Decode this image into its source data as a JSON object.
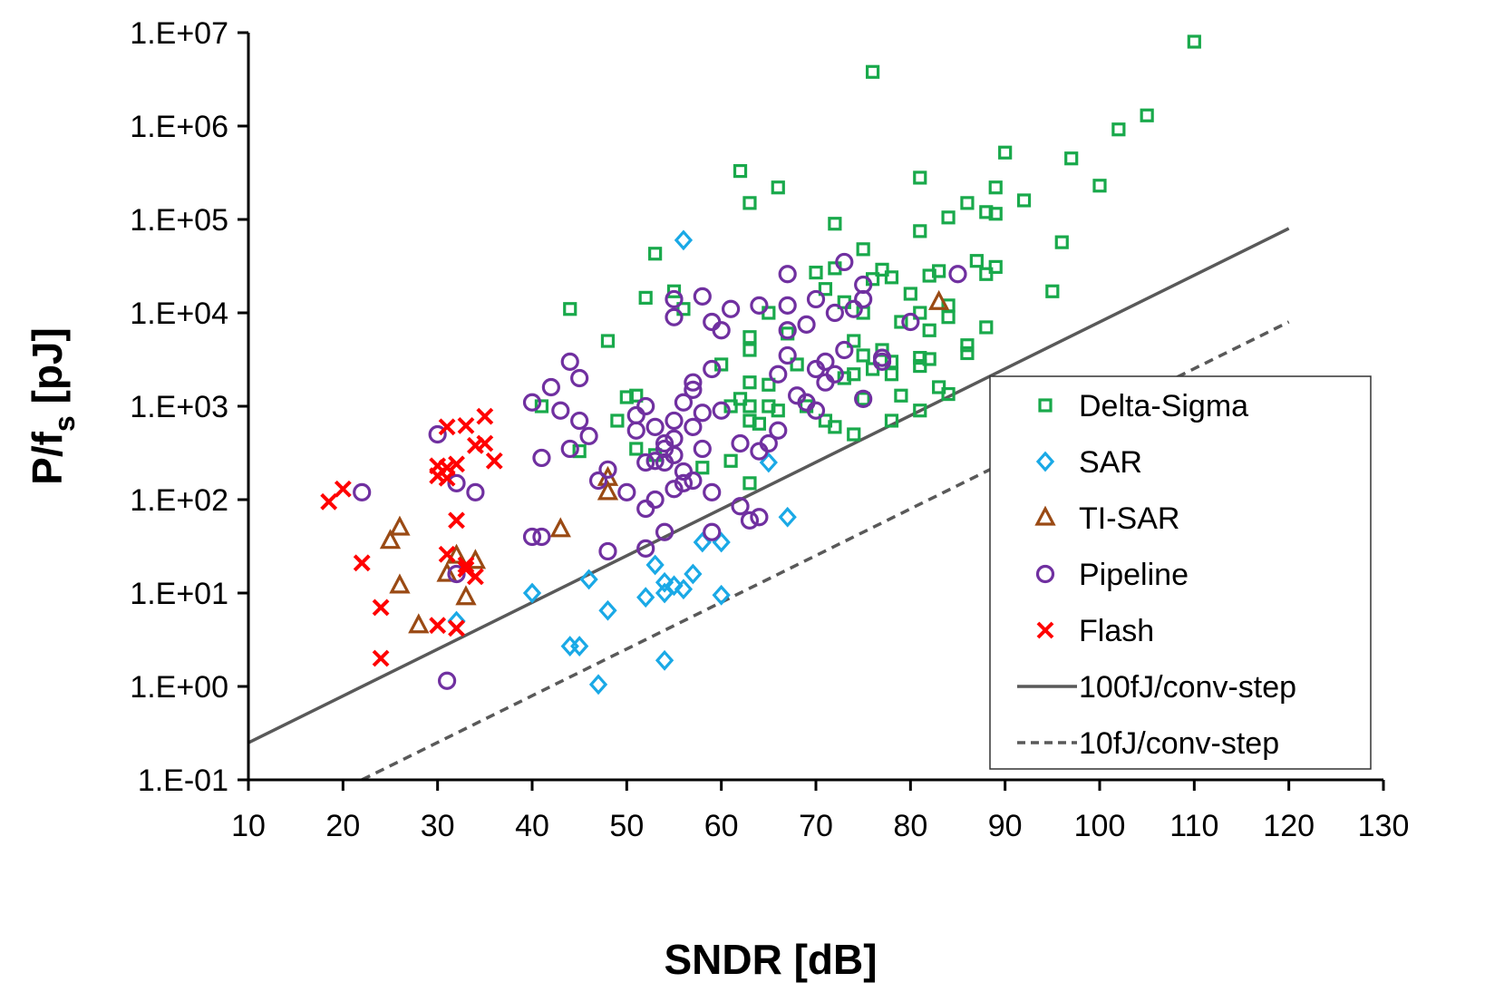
{
  "chart_data": {
    "type": "scatter",
    "title": "",
    "xlabel": "SNDR [dB]",
    "ylabel_main": "P/f",
    "ylabel_sub": "s",
    "ylabel_tail": " [pJ]",
    "xlim": [
      10,
      130
    ],
    "ylim": [
      0.1,
      10000000
    ],
    "yscale": "log",
    "grid": false,
    "legend_position": "bottom-right",
    "x_ticks": [
      "10",
      "20",
      "30",
      "40",
      "50",
      "60",
      "70",
      "80",
      "90",
      "100",
      "110",
      "120",
      "130"
    ],
    "y_ticks": [
      "1.E-01",
      "1.E+00",
      "1.E+01",
      "1.E+02",
      "1.E+03",
      "1.E+04",
      "1.E+05",
      "1.E+06",
      "1.E+07"
    ],
    "series": [
      {
        "name": "Delta-Sigma",
        "marker": "square",
        "color": "#19a94b",
        "points": [
          [
            110,
            8000000
          ],
          [
            76,
            3800000
          ],
          [
            105,
            1300000
          ],
          [
            102,
            920000
          ],
          [
            90,
            520000
          ],
          [
            97,
            450000
          ],
          [
            62,
            330000
          ],
          [
            81,
            280000
          ],
          [
            66,
            220000
          ],
          [
            89,
            220000
          ],
          [
            100,
            230000
          ],
          [
            92,
            160000
          ],
          [
            63,
            150000
          ],
          [
            86,
            150000
          ],
          [
            88,
            120000
          ],
          [
            89,
            115000
          ],
          [
            84,
            105000
          ],
          [
            72,
            90000
          ],
          [
            81,
            75000
          ],
          [
            96,
            57000
          ],
          [
            75,
            48000
          ],
          [
            53,
            43000
          ],
          [
            87,
            36000
          ],
          [
            89,
            31000
          ],
          [
            77,
            29000
          ],
          [
            70,
            27000
          ],
          [
            72,
            30000
          ],
          [
            83,
            28000
          ],
          [
            88,
            26000
          ],
          [
            78,
            24000
          ],
          [
            76,
            23000
          ],
          [
            82,
            25000
          ],
          [
            55,
            17000
          ],
          [
            71,
            18000
          ],
          [
            80,
            16000
          ],
          [
            95,
            17000
          ],
          [
            52,
            14500
          ],
          [
            73,
            13000
          ],
          [
            84,
            12000
          ],
          [
            44,
            11000
          ],
          [
            56,
            11000
          ],
          [
            75,
            10000
          ],
          [
            81,
            10000
          ],
          [
            65,
            10000
          ],
          [
            84,
            9000
          ],
          [
            79,
            8000
          ],
          [
            88,
            7000
          ],
          [
            82,
            6500
          ],
          [
            63,
            5500
          ],
          [
            67,
            6000
          ],
          [
            48,
            5000
          ],
          [
            74,
            5000
          ],
          [
            86,
            4500
          ],
          [
            63,
            4000
          ],
          [
            77,
            4000
          ],
          [
            86,
            3700
          ],
          [
            75,
            3500
          ],
          [
            81,
            3300
          ],
          [
            82,
            3200
          ],
          [
            78,
            3000
          ],
          [
            60,
            2800
          ],
          [
            68,
            2800
          ],
          [
            76,
            2500
          ],
          [
            78,
            2200
          ],
          [
            81,
            2700
          ],
          [
            74,
            2200
          ],
          [
            73,
            2000
          ],
          [
            63,
            1800
          ],
          [
            65,
            1700
          ],
          [
            83,
            1600
          ],
          [
            84,
            1350
          ],
          [
            79,
            1300
          ],
          [
            75,
            1200
          ],
          [
            62,
            1200
          ],
          [
            50,
            1250
          ],
          [
            51,
            1300
          ],
          [
            41,
            1000
          ],
          [
            61,
            1000
          ],
          [
            63,
            1000
          ],
          [
            65,
            1000
          ],
          [
            66,
            900
          ],
          [
            69,
            1000
          ],
          [
            81,
            900
          ],
          [
            63,
            700
          ],
          [
            64,
            650
          ],
          [
            71,
            700
          ],
          [
            72,
            600
          ],
          [
            74,
            500
          ],
          [
            78,
            700
          ],
          [
            49,
            700
          ],
          [
            51,
            350
          ],
          [
            45,
            330
          ],
          [
            58,
            220
          ],
          [
            61,
            260
          ],
          [
            63,
            150
          ],
          [
            53,
            300
          ]
        ]
      },
      {
        "name": "SAR",
        "marker": "diamond",
        "color": "#1aa9e6",
        "points": [
          [
            56,
            60000
          ],
          [
            65,
            250
          ],
          [
            67,
            65
          ],
          [
            58,
            35
          ],
          [
            60,
            35
          ],
          [
            46,
            14
          ],
          [
            40,
            10
          ],
          [
            53,
            20
          ],
          [
            54,
            13
          ],
          [
            55,
            12
          ],
          [
            54,
            10
          ],
          [
            56,
            11
          ],
          [
            57,
            16
          ],
          [
            52,
            9
          ],
          [
            60,
            9.5
          ],
          [
            48,
            6.5
          ],
          [
            32,
            5
          ],
          [
            44,
            2.7
          ],
          [
            45,
            2.7
          ],
          [
            54,
            1.9
          ],
          [
            47,
            1.05
          ]
        ]
      },
      {
        "name": "TI-SAR",
        "marker": "triangle",
        "color": "#9a4a14",
        "points": [
          [
            83,
            13000
          ],
          [
            48,
            120
          ],
          [
            48,
            170
          ],
          [
            26,
            50
          ],
          [
            25,
            36
          ],
          [
            43,
            48
          ],
          [
            26,
            12
          ],
          [
            31,
            16
          ],
          [
            32,
            25
          ],
          [
            34,
            22
          ],
          [
            33,
            9
          ],
          [
            28,
            4.5
          ]
        ]
      },
      {
        "name": "Pipeline",
        "marker": "circle",
        "color": "#7030a0",
        "points": [
          [
            67,
            26000
          ],
          [
            73,
            35000
          ],
          [
            85,
            26000
          ],
          [
            75,
            20000
          ],
          [
            55,
            14000
          ],
          [
            58,
            15000
          ],
          [
            61,
            11000
          ],
          [
            64,
            12000
          ],
          [
            67,
            12000
          ],
          [
            70,
            14000
          ],
          [
            72,
            10000
          ],
          [
            74,
            11000
          ],
          [
            75,
            14000
          ],
          [
            55,
            9000
          ],
          [
            59,
            8000
          ],
          [
            60,
            6500
          ],
          [
            67,
            6500
          ],
          [
            69,
            7500
          ],
          [
            73,
            4000
          ],
          [
            77,
            3300
          ],
          [
            77,
            3000
          ],
          [
            80,
            8000
          ],
          [
            67,
            3500
          ],
          [
            40,
            1100
          ],
          [
            42,
            1600
          ],
          [
            44,
            3000
          ],
          [
            45,
            2000
          ],
          [
            45,
            700
          ],
          [
            46,
            480
          ],
          [
            43,
            900
          ],
          [
            44,
            350
          ],
          [
            41,
            280
          ],
          [
            47,
            160
          ],
          [
            48,
            210
          ],
          [
            50,
            120
          ],
          [
            51,
            800
          ],
          [
            51,
            550
          ],
          [
            52,
            1000
          ],
          [
            53,
            600
          ],
          [
            53,
            260
          ],
          [
            54,
            350
          ],
          [
            54,
            400
          ],
          [
            55,
            300
          ],
          [
            55,
            450
          ],
          [
            55,
            700
          ],
          [
            56,
            200
          ],
          [
            56,
            1100
          ],
          [
            57,
            1800
          ],
          [
            57,
            1500
          ],
          [
            57,
            600
          ],
          [
            58,
            350
          ],
          [
            58,
            850
          ],
          [
            59,
            2500
          ],
          [
            60,
            900
          ],
          [
            56,
            150
          ],
          [
            57,
            160
          ],
          [
            52,
            250
          ],
          [
            54,
            250
          ],
          [
            53,
            100
          ],
          [
            52,
            80
          ],
          [
            55,
            130
          ],
          [
            59,
            120
          ],
          [
            62,
            85
          ],
          [
            63,
            60
          ],
          [
            64,
            65
          ],
          [
            62,
            400
          ],
          [
            64,
            330
          ],
          [
            65,
            400
          ],
          [
            66,
            550
          ],
          [
            66,
            2200
          ],
          [
            68,
            1300
          ],
          [
            69,
            1100
          ],
          [
            70,
            900
          ],
          [
            70,
            2500
          ],
          [
            71,
            1800
          ],
          [
            71,
            3000
          ],
          [
            72,
            2200
          ],
          [
            75,
            1200
          ],
          [
            22,
            120
          ],
          [
            30,
            500
          ],
          [
            32,
            150
          ],
          [
            34,
            120
          ],
          [
            41,
            40
          ],
          [
            40,
            40
          ],
          [
            48,
            28
          ],
          [
            52,
            30
          ],
          [
            54,
            45
          ],
          [
            59,
            45
          ],
          [
            32,
            16
          ],
          [
            31,
            1.15
          ]
        ]
      },
      {
        "name": "Flash",
        "marker": "x",
        "color": "#ff0000",
        "points": [
          [
            31,
            600
          ],
          [
            33,
            620
          ],
          [
            35,
            780
          ],
          [
            30,
            230
          ],
          [
            30,
            180
          ],
          [
            31,
            220
          ],
          [
            32,
            240
          ],
          [
            31,
            170
          ],
          [
            34,
            380
          ],
          [
            35,
            400
          ],
          [
            36,
            260
          ],
          [
            18.5,
            95
          ],
          [
            20,
            130
          ],
          [
            32,
            60
          ],
          [
            22,
            21
          ],
          [
            31,
            26
          ],
          [
            33,
            20
          ],
          [
            33,
            18
          ],
          [
            34,
            15
          ],
          [
            24,
            7
          ],
          [
            30,
            4.5
          ],
          [
            32,
            4.2
          ],
          [
            24,
            2.0
          ]
        ]
      }
    ],
    "lines": [
      {
        "name": "100fJ/conv-step",
        "style": "solid",
        "color": "#595959",
        "points": [
          [
            10,
            0.25
          ],
          [
            120,
            80000
          ]
        ]
      },
      {
        "name": "10fJ/conv-step",
        "style": "dashed",
        "color": "#595959",
        "points": [
          [
            22,
            0.1
          ],
          [
            120,
            8000
          ]
        ]
      }
    ]
  }
}
